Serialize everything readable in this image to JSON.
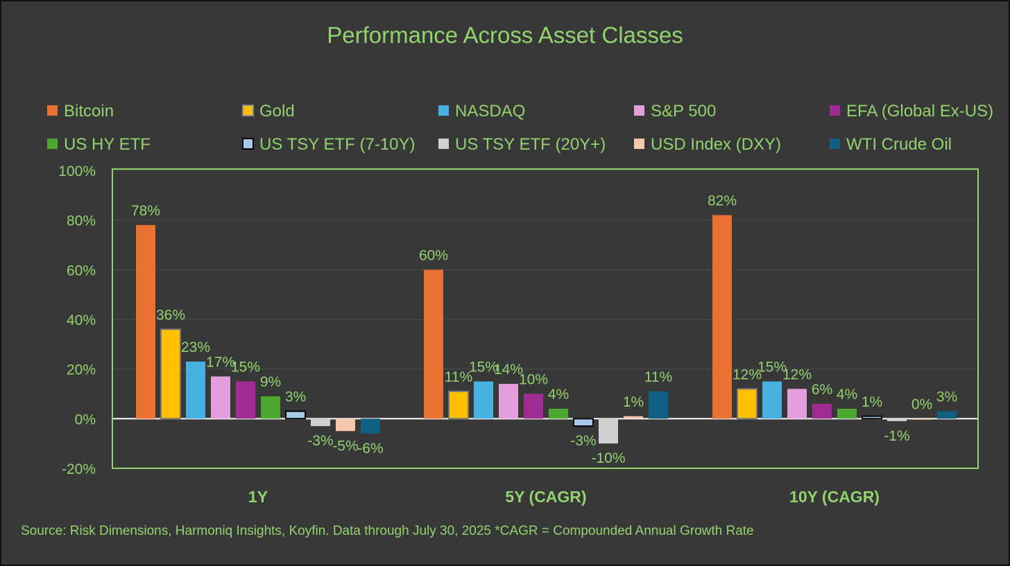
{
  "chart_data": {
    "type": "bar",
    "title": "Performance Across Asset Classes",
    "categories": [
      "1Y",
      "5Y (CAGR)",
      "10Y (CAGR)"
    ],
    "ylim": [
      -20,
      100
    ],
    "yticks": [
      -20,
      0,
      20,
      40,
      60,
      80,
      100
    ],
    "ytick_labels": [
      "-20%",
      "0%",
      "20%",
      "40%",
      "60%",
      "80%",
      "100%"
    ],
    "grid": true,
    "legend_position": "top",
    "series": [
      {
        "name": "Bitcoin",
        "color": "#e97132",
        "values": [
          78,
          60,
          82
        ],
        "labels": [
          "78%",
          "60%",
          "82%"
        ]
      },
      {
        "name": "Gold",
        "color": "#ffc000",
        "values": [
          36,
          11,
          12
        ],
        "labels": [
          "36%",
          "11%",
          "12%"
        ]
      },
      {
        "name": "NASDAQ",
        "color": "#47b1e2",
        "values": [
          23,
          15,
          15
        ],
        "labels": [
          "23%",
          "15%",
          "15%"
        ]
      },
      {
        "name": "S&P 500",
        "color": "#e49edd",
        "values": [
          17,
          14,
          12
        ],
        "labels": [
          "17%",
          "14%",
          "12%"
        ]
      },
      {
        "name": "EFA (Global Ex-US)",
        "color": "#a02b93",
        "values": [
          15,
          10,
          6
        ],
        "labels": [
          "15%",
          "10%",
          "6%"
        ]
      },
      {
        "name": "US HY ETF",
        "color": "#4ea72e",
        "values": [
          9,
          4,
          4
        ],
        "labels": [
          "9%",
          "4%",
          "4%"
        ]
      },
      {
        "name": "US TSY ETF (7-10Y)",
        "color": "#a6caec",
        "values": [
          3,
          -3,
          1
        ],
        "labels": [
          "3%",
          "-3%",
          "1%"
        ]
      },
      {
        "name": "US TSY ETF (20Y+)",
        "color": "#d0d0d0",
        "values": [
          -3,
          -10,
          -1
        ],
        "labels": [
          "-3%",
          "-10%",
          "-1%"
        ]
      },
      {
        "name": "USD Index (DXY)",
        "color": "#f7c7ac",
        "values": [
          -5,
          1,
          0
        ],
        "labels": [
          "-5%",
          "1%",
          "0%"
        ]
      },
      {
        "name": "WTI Crude Oil",
        "color": "#0f5f83",
        "values": [
          -6,
          11,
          3
        ],
        "labels": [
          "-6%",
          "11%",
          "3%"
        ]
      }
    ],
    "source": "Source: Risk Dimensions, Harmoniq Insights, Koyfin. Data through July 30, 2025 *CAGR = Compounded Annual Growth Rate"
  }
}
